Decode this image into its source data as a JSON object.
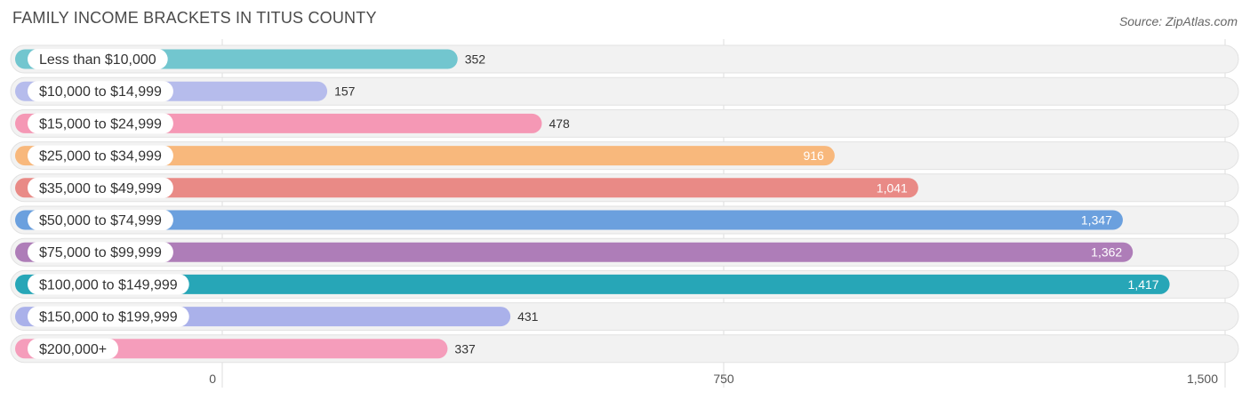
{
  "chart_data": {
    "type": "bar",
    "orientation": "horizontal",
    "title": "FAMILY INCOME BRACKETS IN TITUS COUNTY",
    "source": "Source: ZipAtlas.com",
    "categories": [
      "Less than $10,000",
      "$10,000 to $14,999",
      "$15,000 to $24,999",
      "$25,000 to $34,999",
      "$35,000 to $49,999",
      "$50,000 to $74,999",
      "$75,000 to $99,999",
      "$100,000 to $149,999",
      "$150,000 to $199,999",
      "$200,000+"
    ],
    "values": [
      352,
      157,
      478,
      916,
      1041,
      1347,
      1362,
      1417,
      431,
      337
    ],
    "value_labels": [
      "352",
      "157",
      "478",
      "916",
      "1,041",
      "1,347",
      "1,362",
      "1,417",
      "431",
      "337"
    ],
    "colors": [
      "#72c6cf",
      "#b6bcec",
      "#f598b5",
      "#f8b87c",
      "#e98a86",
      "#6ba0de",
      "#ae7db8",
      "#27a6b7",
      "#aab1ea",
      "#f59dbb"
    ],
    "xlim": [
      0,
      1500
    ],
    "xticks": [
      0,
      750,
      1500
    ],
    "xtick_labels": [
      "0",
      "750",
      "1,500"
    ],
    "grid": true
  }
}
